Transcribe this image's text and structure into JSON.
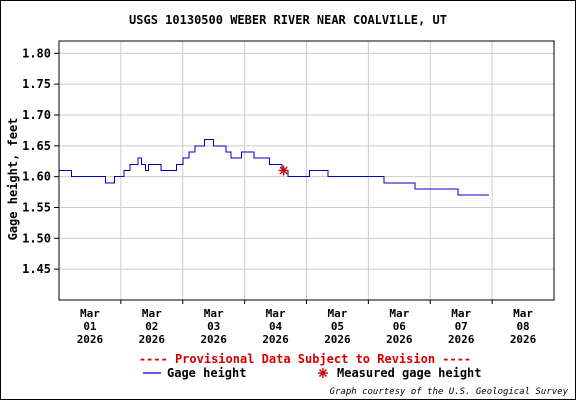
{
  "chart_data": {
    "type": "line",
    "title": "USGS 10130500 WEBER RIVER NEAR COALVILLE, UT",
    "ylabel": "Gage height, feet",
    "xlabel": "",
    "ylim": [
      1.4,
      1.82
    ],
    "yticks": [
      1.45,
      1.5,
      1.55,
      1.6,
      1.65,
      1.7,
      1.75,
      1.8
    ],
    "xlim": [
      0,
      8.0
    ],
    "xticks": [
      {
        "x": 0.5,
        "lines": [
          "Mar",
          "01",
          "2026"
        ]
      },
      {
        "x": 1.5,
        "lines": [
          "Mar",
          "02",
          "2026"
        ]
      },
      {
        "x": 2.5,
        "lines": [
          "Mar",
          "03",
          "2026"
        ]
      },
      {
        "x": 3.5,
        "lines": [
          "Mar",
          "04",
          "2026"
        ]
      },
      {
        "x": 4.5,
        "lines": [
          "Mar",
          "05",
          "2026"
        ]
      },
      {
        "x": 5.5,
        "lines": [
          "Mar",
          "06",
          "2026"
        ]
      },
      {
        "x": 6.5,
        "lines": [
          "Mar",
          "07",
          "2026"
        ]
      },
      {
        "x": 7.5,
        "lines": [
          "Mar",
          "08",
          "2026"
        ]
      }
    ],
    "grid": true,
    "series": [
      {
        "name": "Gage height",
        "color": "#0000c0",
        "step": true,
        "points": [
          [
            0.0,
            1.61
          ],
          [
            0.2,
            1.6
          ],
          [
            0.75,
            1.59
          ],
          [
            0.9,
            1.6
          ],
          [
            1.05,
            1.61
          ],
          [
            1.15,
            1.62
          ],
          [
            1.28,
            1.63
          ],
          [
            1.33,
            1.62
          ],
          [
            1.4,
            1.61
          ],
          [
            1.45,
            1.62
          ],
          [
            1.65,
            1.61
          ],
          [
            1.9,
            1.62
          ],
          [
            2.0,
            1.63
          ],
          [
            2.1,
            1.64
          ],
          [
            2.2,
            1.65
          ],
          [
            2.35,
            1.66
          ],
          [
            2.5,
            1.65
          ],
          [
            2.7,
            1.64
          ],
          [
            2.78,
            1.63
          ],
          [
            2.95,
            1.64
          ],
          [
            3.15,
            1.63
          ],
          [
            3.4,
            1.62
          ],
          [
            3.6,
            1.61
          ],
          [
            3.7,
            1.6
          ],
          [
            4.05,
            1.61
          ],
          [
            4.35,
            1.6
          ],
          [
            5.25,
            1.59
          ],
          [
            5.75,
            1.58
          ],
          [
            6.45,
            1.57
          ],
          [
            6.95,
            1.57
          ]
        ]
      }
    ],
    "measurements": [
      {
        "name": "Measured gage height",
        "x": 3.63,
        "y": 1.61,
        "color": "#cc0000"
      }
    ],
    "notice": "---- Provisional Data Subject to Revision ----",
    "legend": [
      {
        "label": "Gage height",
        "kind": "line",
        "color": "#0000c0"
      },
      {
        "label": "Measured gage height",
        "kind": "asterisk",
        "color": "#cc0000"
      }
    ],
    "credit": "Graph courtesy of the U.S. Geological Survey"
  }
}
